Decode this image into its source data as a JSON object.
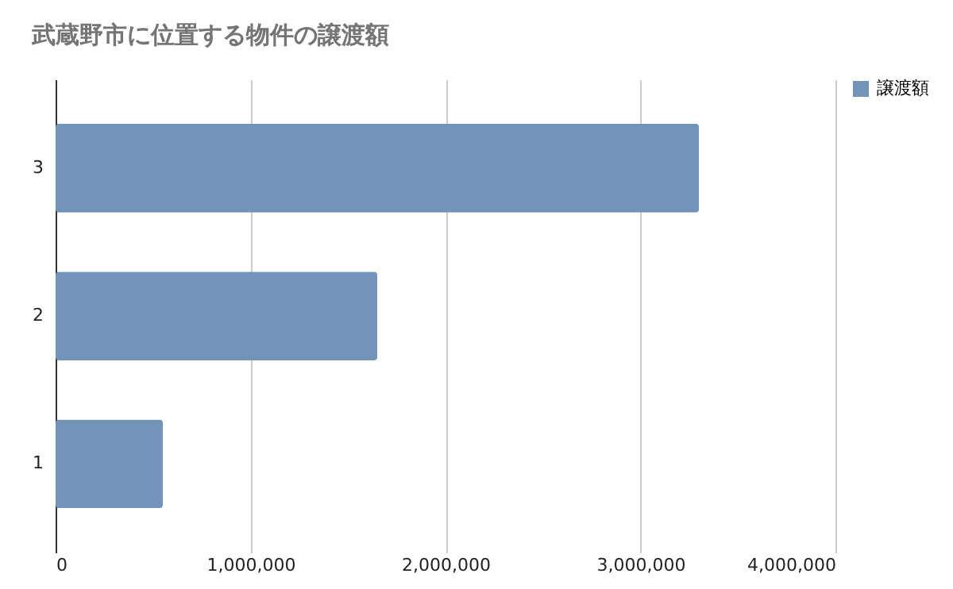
{
  "chart_data": {
    "type": "bar",
    "orientation": "horizontal",
    "title": "武蔵野市に位置する物件の譲渡額",
    "categories": [
      "3",
      "2",
      "1"
    ],
    "series": [
      {
        "name": "譲渡額",
        "color": "#7394b9",
        "values": [
          3300000,
          1650000,
          550000
        ]
      }
    ],
    "xlim": [
      0,
      4000000
    ],
    "xticks": [
      0,
      {
        "value": 1000000,
        "label": "1,000,000"
      },
      {
        "value": 2000000,
        "label": "2,000,000"
      },
      {
        "value": 3000000,
        "label": "3,000,000"
      },
      {
        "value": 4000000,
        "label": "4,000,000"
      }
    ],
    "grid": "x",
    "legend": "top right"
  }
}
